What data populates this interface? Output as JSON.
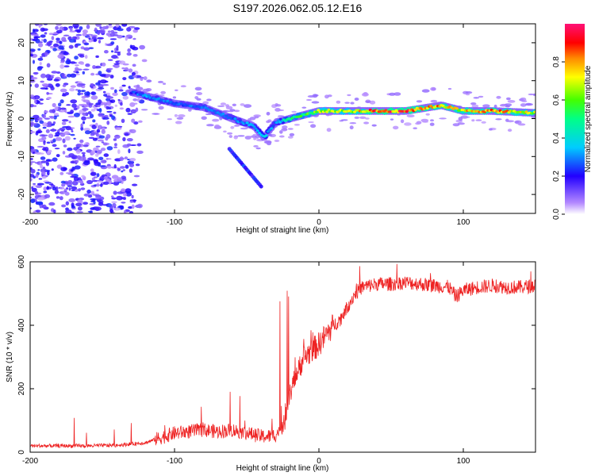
{
  "title": "S197.2026.062.05.12.E16",
  "chart_data": [
    {
      "type": "heatmap",
      "xlabel": "Height of straight line (km)",
      "ylabel": "Frequency (Hz)",
      "xlim": [
        -200,
        150
      ],
      "ylim": [
        -25,
        25
      ],
      "xticks": [
        "-200",
        "-100",
        "0",
        "100"
      ],
      "yticks": [
        "20",
        "10",
        "0",
        "-10",
        "-20"
      ],
      "colorbar": {
        "label": "Normalized spectral amplitude",
        "range": [
          0,
          1
        ],
        "ticks": [
          "0.0",
          "0.2",
          "0.4",
          "0.6",
          "0.8"
        ]
      },
      "ridge": {
        "x": [
          -130,
          -120,
          -100,
          -80,
          -60,
          -45,
          -38,
          -30,
          -20,
          -10,
          0,
          20,
          40,
          60,
          85,
          100,
          120,
          150
        ],
        "freq": [
          7,
          6,
          4,
          3,
          0,
          -2,
          -5,
          -1,
          0,
          1,
          2,
          2,
          2,
          2,
          3.5,
          2,
          2,
          1.5
        ],
        "amp": [
          0.25,
          0.35,
          0.3,
          0.3,
          0.3,
          0.35,
          0.45,
          0.3,
          0.55,
          0.6,
          0.7,
          0.7,
          0.95,
          0.95,
          0.85,
          0.8,
          0.9,
          0.7
        ]
      }
    },
    {
      "type": "line",
      "xlabel": "Height of straight line (km)",
      "ylabel": "SNR (10 * v/v)",
      "xlim": [
        -200,
        150
      ],
      "ylim": [
        0,
        600
      ],
      "xticks": [
        "-200",
        "-100",
        "0",
        "100"
      ],
      "yticks": [
        "600",
        "400",
        "200",
        "0"
      ],
      "series": [
        {
          "name": "SNR",
          "color": "#ee2222",
          "x": [
            -200,
            -180,
            -160,
            -140,
            -120,
            -110,
            -100,
            -90,
            -80,
            -70,
            -60,
            -50,
            -40,
            -35,
            -30,
            -25,
            -20,
            -15,
            -10,
            -5,
            0,
            5,
            10,
            15,
            20,
            25,
            30,
            40,
            50,
            60,
            70,
            80,
            90,
            95,
            100,
            110,
            120,
            130,
            140,
            150
          ],
          "values": [
            20,
            20,
            20,
            22,
            30,
            45,
            60,
            65,
            70,
            65,
            70,
            60,
            50,
            50,
            55,
            80,
            180,
            260,
            300,
            320,
            340,
            370,
            400,
            420,
            460,
            500,
            520,
            530,
            530,
            535,
            530,
            525,
            520,
            490,
            510,
            520,
            525,
            520,
            520,
            525
          ]
        }
      ]
    }
  ]
}
